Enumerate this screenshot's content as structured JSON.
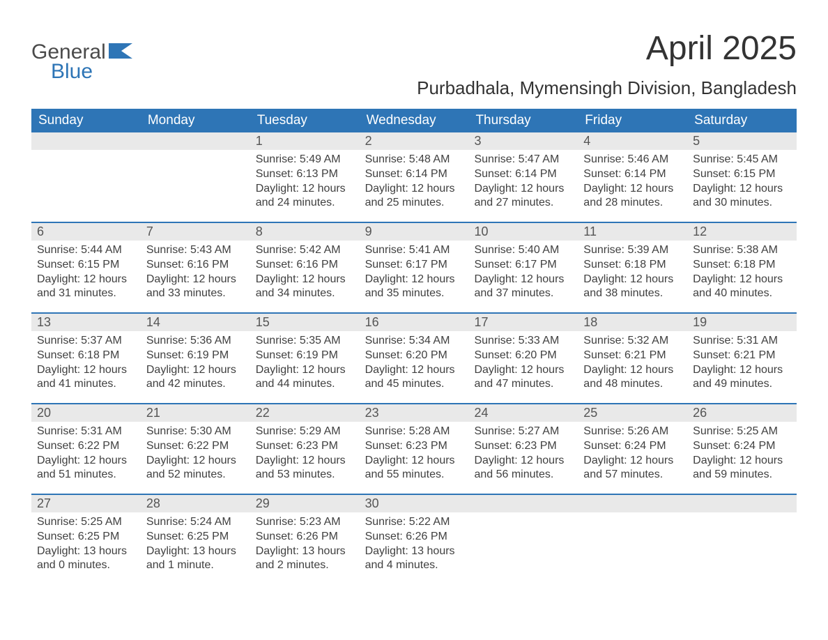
{
  "logo": {
    "text1": "General",
    "text2": "Blue",
    "flag_color": "#2e75b6"
  },
  "title": "April 2025",
  "location": "Purbadhala, Mymensingh Division, Bangladesh",
  "colors": {
    "header_bg": "#2e75b6",
    "header_text": "#ffffff",
    "daynum_bg": "#e9e9e9",
    "body_text": "#404040",
    "rule": "#2e75b6",
    "page_bg": "#ffffff"
  },
  "typography": {
    "title_fontsize": 48,
    "location_fontsize": 26,
    "dayhead_fontsize": 19,
    "daynum_fontsize": 18,
    "body_fontsize": 16
  },
  "day_headers": [
    "Sunday",
    "Monday",
    "Tuesday",
    "Wednesday",
    "Thursday",
    "Friday",
    "Saturday"
  ],
  "weeks": [
    [
      {
        "num": "",
        "sunrise": "",
        "sunset": "",
        "daylight": ""
      },
      {
        "num": "",
        "sunrise": "",
        "sunset": "",
        "daylight": ""
      },
      {
        "num": "1",
        "sunrise": "Sunrise: 5:49 AM",
        "sunset": "Sunset: 6:13 PM",
        "daylight": "Daylight: 12 hours and 24 minutes."
      },
      {
        "num": "2",
        "sunrise": "Sunrise: 5:48 AM",
        "sunset": "Sunset: 6:14 PM",
        "daylight": "Daylight: 12 hours and 25 minutes."
      },
      {
        "num": "3",
        "sunrise": "Sunrise: 5:47 AM",
        "sunset": "Sunset: 6:14 PM",
        "daylight": "Daylight: 12 hours and 27 minutes."
      },
      {
        "num": "4",
        "sunrise": "Sunrise: 5:46 AM",
        "sunset": "Sunset: 6:14 PM",
        "daylight": "Daylight: 12 hours and 28 minutes."
      },
      {
        "num": "5",
        "sunrise": "Sunrise: 5:45 AM",
        "sunset": "Sunset: 6:15 PM",
        "daylight": "Daylight: 12 hours and 30 minutes."
      }
    ],
    [
      {
        "num": "6",
        "sunrise": "Sunrise: 5:44 AM",
        "sunset": "Sunset: 6:15 PM",
        "daylight": "Daylight: 12 hours and 31 minutes."
      },
      {
        "num": "7",
        "sunrise": "Sunrise: 5:43 AM",
        "sunset": "Sunset: 6:16 PM",
        "daylight": "Daylight: 12 hours and 33 minutes."
      },
      {
        "num": "8",
        "sunrise": "Sunrise: 5:42 AM",
        "sunset": "Sunset: 6:16 PM",
        "daylight": "Daylight: 12 hours and 34 minutes."
      },
      {
        "num": "9",
        "sunrise": "Sunrise: 5:41 AM",
        "sunset": "Sunset: 6:17 PM",
        "daylight": "Daylight: 12 hours and 35 minutes."
      },
      {
        "num": "10",
        "sunrise": "Sunrise: 5:40 AM",
        "sunset": "Sunset: 6:17 PM",
        "daylight": "Daylight: 12 hours and 37 minutes."
      },
      {
        "num": "11",
        "sunrise": "Sunrise: 5:39 AM",
        "sunset": "Sunset: 6:18 PM",
        "daylight": "Daylight: 12 hours and 38 minutes."
      },
      {
        "num": "12",
        "sunrise": "Sunrise: 5:38 AM",
        "sunset": "Sunset: 6:18 PM",
        "daylight": "Daylight: 12 hours and 40 minutes."
      }
    ],
    [
      {
        "num": "13",
        "sunrise": "Sunrise: 5:37 AM",
        "sunset": "Sunset: 6:18 PM",
        "daylight": "Daylight: 12 hours and 41 minutes."
      },
      {
        "num": "14",
        "sunrise": "Sunrise: 5:36 AM",
        "sunset": "Sunset: 6:19 PM",
        "daylight": "Daylight: 12 hours and 42 minutes."
      },
      {
        "num": "15",
        "sunrise": "Sunrise: 5:35 AM",
        "sunset": "Sunset: 6:19 PM",
        "daylight": "Daylight: 12 hours and 44 minutes."
      },
      {
        "num": "16",
        "sunrise": "Sunrise: 5:34 AM",
        "sunset": "Sunset: 6:20 PM",
        "daylight": "Daylight: 12 hours and 45 minutes."
      },
      {
        "num": "17",
        "sunrise": "Sunrise: 5:33 AM",
        "sunset": "Sunset: 6:20 PM",
        "daylight": "Daylight: 12 hours and 47 minutes."
      },
      {
        "num": "18",
        "sunrise": "Sunrise: 5:32 AM",
        "sunset": "Sunset: 6:21 PM",
        "daylight": "Daylight: 12 hours and 48 minutes."
      },
      {
        "num": "19",
        "sunrise": "Sunrise: 5:31 AM",
        "sunset": "Sunset: 6:21 PM",
        "daylight": "Daylight: 12 hours and 49 minutes."
      }
    ],
    [
      {
        "num": "20",
        "sunrise": "Sunrise: 5:31 AM",
        "sunset": "Sunset: 6:22 PM",
        "daylight": "Daylight: 12 hours and 51 minutes."
      },
      {
        "num": "21",
        "sunrise": "Sunrise: 5:30 AM",
        "sunset": "Sunset: 6:22 PM",
        "daylight": "Daylight: 12 hours and 52 minutes."
      },
      {
        "num": "22",
        "sunrise": "Sunrise: 5:29 AM",
        "sunset": "Sunset: 6:23 PM",
        "daylight": "Daylight: 12 hours and 53 minutes."
      },
      {
        "num": "23",
        "sunrise": "Sunrise: 5:28 AM",
        "sunset": "Sunset: 6:23 PM",
        "daylight": "Daylight: 12 hours and 55 minutes."
      },
      {
        "num": "24",
        "sunrise": "Sunrise: 5:27 AM",
        "sunset": "Sunset: 6:23 PM",
        "daylight": "Daylight: 12 hours and 56 minutes."
      },
      {
        "num": "25",
        "sunrise": "Sunrise: 5:26 AM",
        "sunset": "Sunset: 6:24 PM",
        "daylight": "Daylight: 12 hours and 57 minutes."
      },
      {
        "num": "26",
        "sunrise": "Sunrise: 5:25 AM",
        "sunset": "Sunset: 6:24 PM",
        "daylight": "Daylight: 12 hours and 59 minutes."
      }
    ],
    [
      {
        "num": "27",
        "sunrise": "Sunrise: 5:25 AM",
        "sunset": "Sunset: 6:25 PM",
        "daylight": "Daylight: 13 hours and 0 minutes."
      },
      {
        "num": "28",
        "sunrise": "Sunrise: 5:24 AM",
        "sunset": "Sunset: 6:25 PM",
        "daylight": "Daylight: 13 hours and 1 minute."
      },
      {
        "num": "29",
        "sunrise": "Sunrise: 5:23 AM",
        "sunset": "Sunset: 6:26 PM",
        "daylight": "Daylight: 13 hours and 2 minutes."
      },
      {
        "num": "30",
        "sunrise": "Sunrise: 5:22 AM",
        "sunset": "Sunset: 6:26 PM",
        "daylight": "Daylight: 13 hours and 4 minutes."
      },
      {
        "num": "",
        "sunrise": "",
        "sunset": "",
        "daylight": ""
      },
      {
        "num": "",
        "sunrise": "",
        "sunset": "",
        "daylight": ""
      },
      {
        "num": "",
        "sunrise": "",
        "sunset": "",
        "daylight": ""
      }
    ]
  ]
}
